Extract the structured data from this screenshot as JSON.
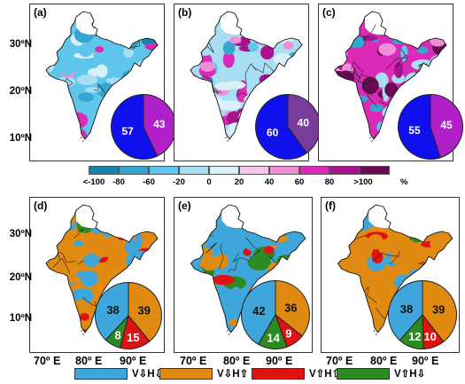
{
  "latitude_labels": [
    "30ºN",
    "20ºN",
    "10ºN"
  ],
  "longitude_labels": [
    "70º E",
    "80º E",
    "90º E"
  ],
  "top_panels": [
    {
      "label": "(a)",
      "pie": [
        {
          "value": 57,
          "color": "#1010ee"
        },
        {
          "value": 43,
          "color": "#b020c8"
        }
      ]
    },
    {
      "label": "(b)",
      "pie": [
        {
          "value": 60,
          "color": "#1010ee"
        },
        {
          "value": 40,
          "color": "#7a3c9a"
        }
      ]
    },
    {
      "label": "(c)",
      "pie": [
        {
          "value": 55,
          "color": "#1010ee"
        },
        {
          "value": 45,
          "color": "#b020c8"
        }
      ]
    }
  ],
  "bottom_panels": [
    {
      "label": "(d)",
      "pie": [
        {
          "value": 38,
          "color": "#3fa6dc"
        },
        {
          "value": 39,
          "color": "#e08a12"
        },
        {
          "value": 15,
          "color": "#e01212"
        },
        {
          "value": 8,
          "color": "#2e8b22"
        }
      ]
    },
    {
      "label": "(e)",
      "pie": [
        {
          "value": 42,
          "color": "#3fa6dc"
        },
        {
          "value": 36,
          "color": "#e08a12"
        },
        {
          "value": 9,
          "color": "#e01212"
        },
        {
          "value": 14,
          "color": "#2e8b22"
        }
      ]
    },
    {
      "label": "(f)",
      "pie": [
        {
          "value": 38,
          "color": "#3fa6dc"
        },
        {
          "value": 39,
          "color": "#e08a12"
        },
        {
          "value": 10,
          "color": "#e01212"
        },
        {
          "value": 12,
          "color": "#2e8b22"
        }
      ]
    }
  ],
  "colorbar": {
    "colors": [
      "#1a83a8",
      "#34a6cf",
      "#5ec6ea",
      "#a8def3",
      "#daf0f8",
      "#f6c7ea",
      "#ee8fd8",
      "#dc2ab8",
      "#a8128a",
      "#6a0a52"
    ],
    "ticks": [
      "<-100",
      "-80",
      "-60",
      "-20",
      "0",
      "20",
      "40",
      "60",
      "80",
      ">100"
    ],
    "unit": "%"
  },
  "legend": [
    {
      "text": "V⇩H⇩",
      "color": "#3fa6dc"
    },
    {
      "text": "V⇩H⇧",
      "color": "#e08a12"
    },
    {
      "text": "V⇧H⇧",
      "color": "#e01212"
    },
    {
      "text": "V⇧H⇩",
      "color": "#2e8b22"
    }
  ]
}
